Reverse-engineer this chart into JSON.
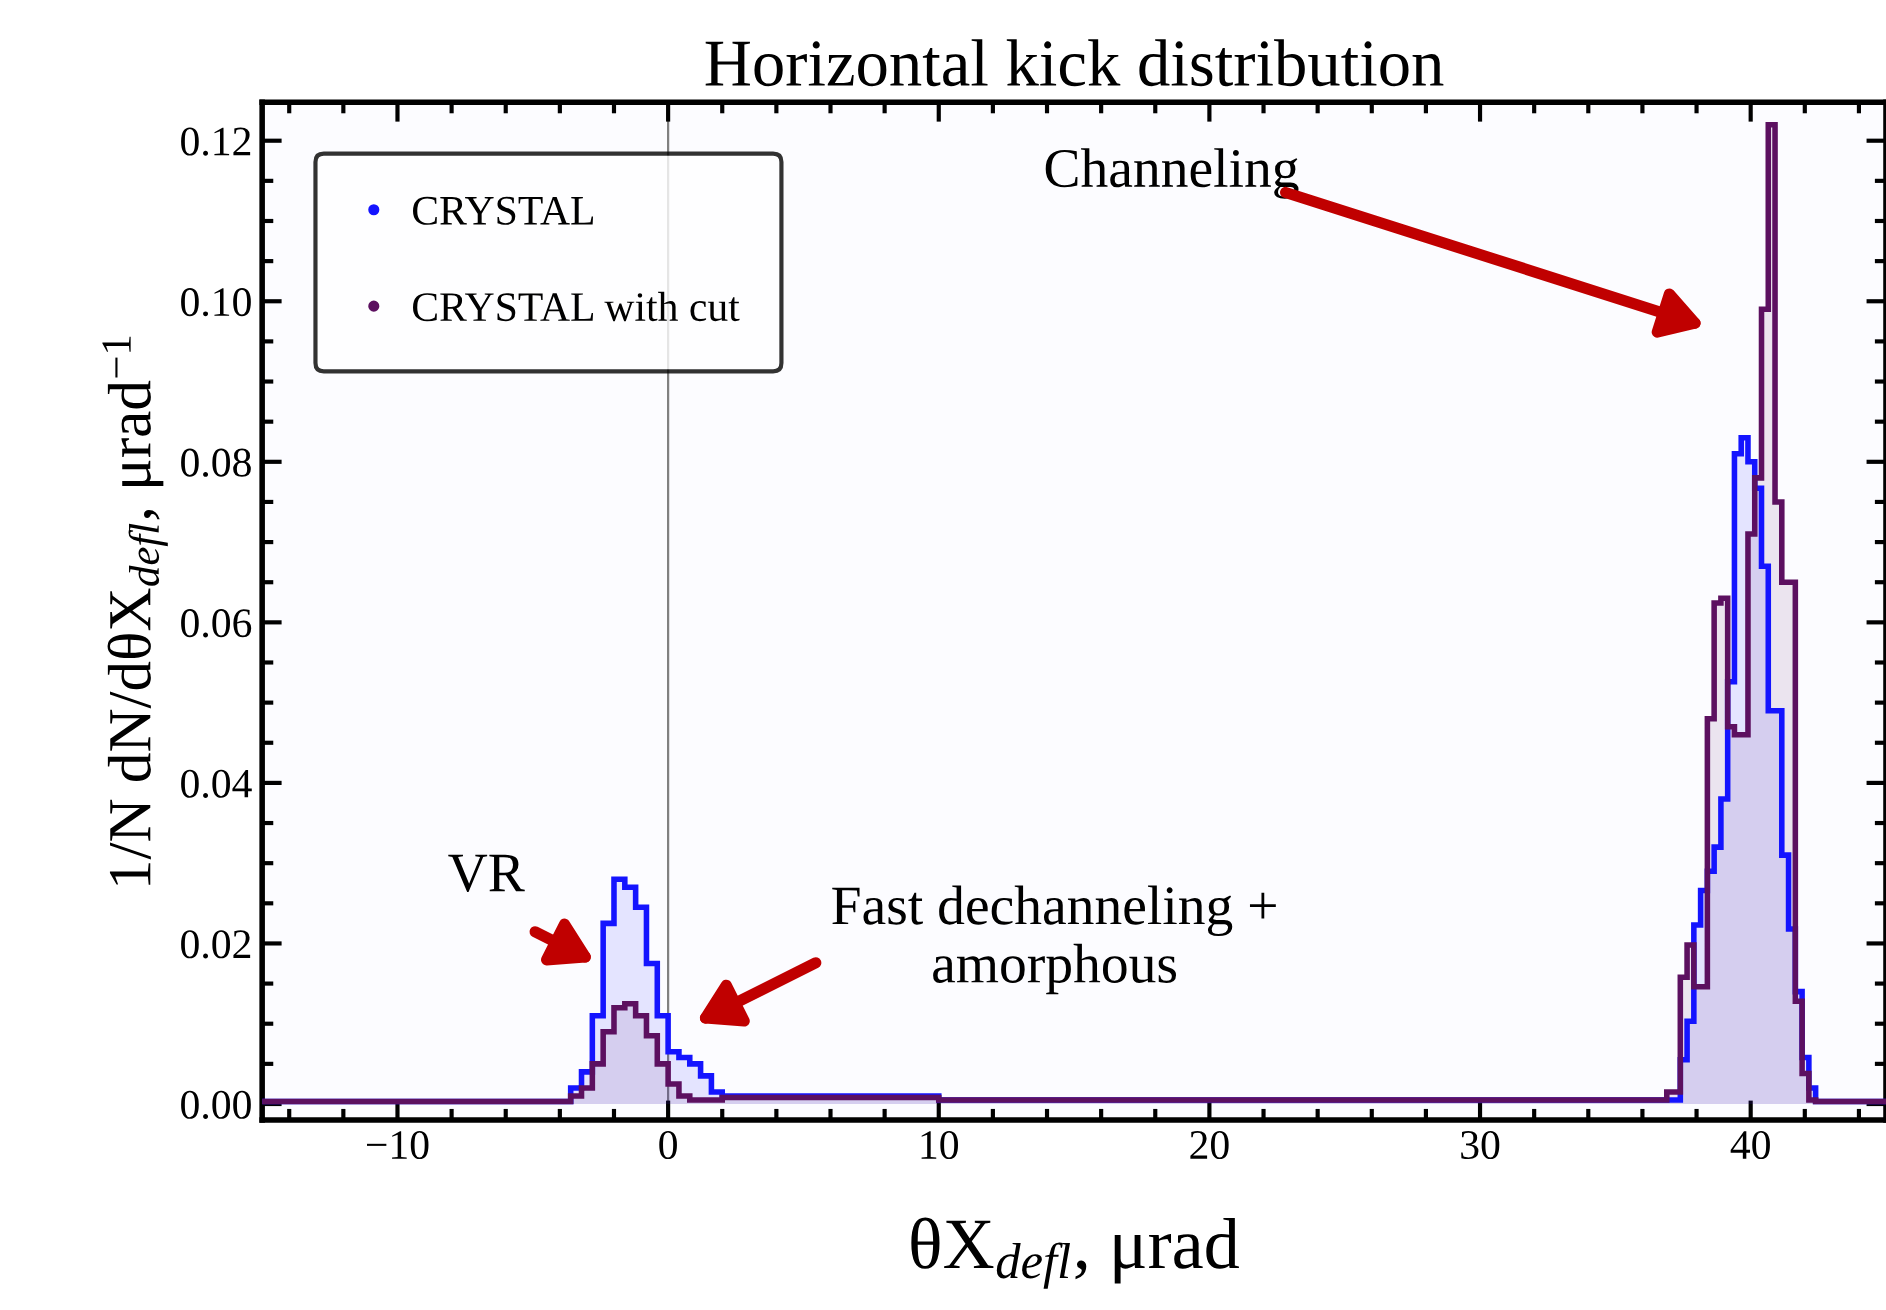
{
  "chart_data": {
    "type": "histogram",
    "title": "Horizontal kick distribution",
    "xlabel": "θX$_{defl}$, μrad",
    "ylabel": "1/N dN/dθX$_{defl}$, μrad$^{−1}$",
    "bins": [
      -15,
      -3.6,
      -3.2,
      -2.8,
      -2.4,
      -2.0,
      -1.6,
      -1.2,
      -0.8,
      -0.4,
      0,
      0.4,
      0.8,
      1.2,
      1.6,
      2.0,
      10,
      36.9,
      37.4,
      37.65,
      37.9,
      38.15,
      38.4,
      38.65,
      38.9,
      39.15,
      39.4,
      39.65,
      39.9,
      40.15,
      40.4,
      40.65,
      40.9,
      41.15,
      41.4,
      41.65,
      41.9,
      42.15,
      42.4,
      45
    ],
    "series": [
      {
        "name": "CRYSTAL",
        "color": "#1414ff",
        "values": [
          0.0003,
          0.002,
          0.004,
          0.011,
          0.0225,
          0.028,
          0.027,
          0.0245,
          0.0175,
          0.011,
          0.0065,
          0.0058,
          0.005,
          0.0035,
          0.0015,
          0.001,
          0.0005,
          0.0005,
          0.0055,
          0.0103,
          0.0223,
          0.0266,
          0.029,
          0.032,
          0.038,
          0.0526,
          0.081,
          0.083,
          0.08,
          0.0767,
          0.067,
          0.049,
          0.049,
          0.031,
          0.0218,
          0.014,
          0.0058,
          0.002,
          0.0003
        ]
      },
      {
        "name": "CRYSTAL with cut",
        "color": "#5c1060",
        "values": [
          0.0003,
          0.001,
          0.002,
          0.005,
          0.009,
          0.012,
          0.0125,
          0.011,
          0.0085,
          0.005,
          0.0025,
          0.001,
          0.0005,
          0.0005,
          0.0005,
          0.0008,
          0.0005,
          0.0015,
          0.0158,
          0.0198,
          0.0146,
          0.0146,
          0.048,
          0.0624,
          0.063,
          0.047,
          0.046,
          0.046,
          0.071,
          0.078,
          0.099,
          0.122,
          0.075,
          0.065,
          0.065,
          0.0128,
          0.0038,
          0.0005,
          0.0003
        ]
      }
    ],
    "xlim": [
      -15,
      45
    ],
    "ylim": [
      -0.002,
      0.1248
    ],
    "xticks": [
      {
        "value": -10,
        "label": "−10"
      },
      0,
      10,
      20,
      30,
      40
    ],
    "yticks": [
      {
        "value": 0,
        "label": "0.00"
      },
      {
        "value": 0.02,
        "label": "0.02"
      },
      {
        "value": 0.04,
        "label": "0.04"
      },
      {
        "value": 0.06,
        "label": "0.06"
      },
      {
        "value": 0.08,
        "label": "0.08"
      },
      {
        "value": 0.1,
        "label": "0.10"
      },
      {
        "value": 0.12,
        "label": "0.12"
      }
    ],
    "ref_lines": [
      {
        "axis": "x",
        "value": 0,
        "color": "#808080"
      }
    ],
    "annotations": [
      "Channeling",
      "VR",
      "Fast dechanneling +\namorphous"
    ],
    "legend": "top left",
    "grid": false
  }
}
